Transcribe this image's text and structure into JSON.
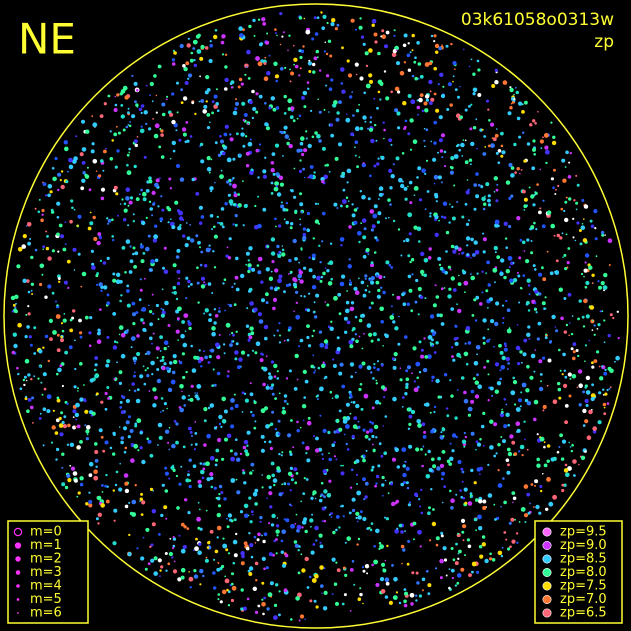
{
  "corner_label": "NE",
  "image_id": "03k61058o0313w",
  "color_key_title": "zp",
  "magnitude_legend": [
    "m=0",
    "m=1",
    "m=2",
    "m=3",
    "m=4",
    "m=5",
    "m=6"
  ],
  "zp_legend": [
    {
      "label": "zp=9.5",
      "color": "#ff66ff"
    },
    {
      "label": "zp=9.0",
      "color": "#cc33ff"
    },
    {
      "label": "zp=8.5",
      "color": "#33ccff"
    },
    {
      "label": "zp=8.0",
      "color": "#33ff99"
    },
    {
      "label": "zp=7.5",
      "color": "#ffdd00"
    },
    {
      "label": "zp=7.0",
      "color": "#ff7733"
    },
    {
      "label": "zp=6.5",
      "color": "#ff6677"
    }
  ]
}
